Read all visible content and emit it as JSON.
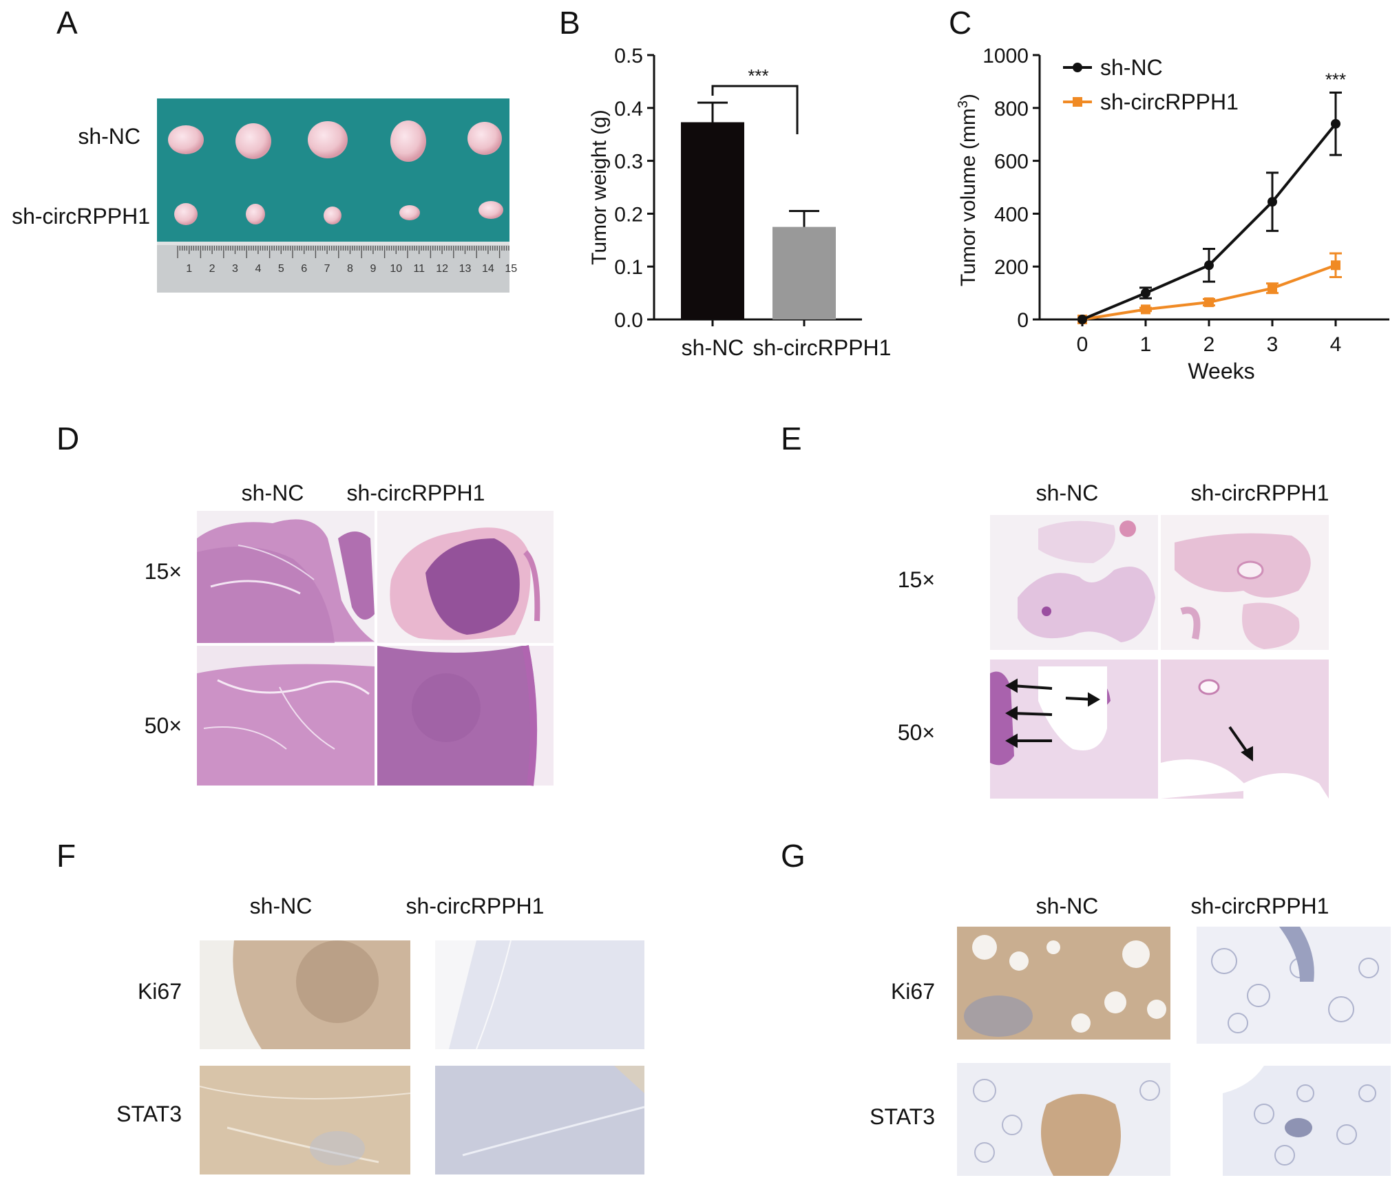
{
  "panels": {
    "A": {
      "letter": "A",
      "row_labels": [
        "sh-NC",
        "sh-circRPPH1"
      ],
      "ruler_numbers": [
        "1",
        "2",
        "3",
        "4",
        "5",
        "6",
        "7",
        "8",
        "9",
        "10",
        "11",
        "12",
        "13",
        "14",
        "15"
      ],
      "colors": {
        "background": "#1f8a8a",
        "tumor": "#eec3cc"
      }
    },
    "B": {
      "letter": "B"
    },
    "C": {
      "letter": "C"
    },
    "D": {
      "letter": "D",
      "col_labels": [
        "sh-NC",
        "sh-circRPPH1"
      ],
      "row_labels": [
        "15×",
        "50×"
      ]
    },
    "E": {
      "letter": "E",
      "col_labels": [
        "sh-NC",
        "sh-circRPPH1"
      ],
      "row_labels": [
        "15×",
        "50×"
      ]
    },
    "F": {
      "letter": "F",
      "col_labels": [
        "sh-NC",
        "sh-circRPPH1"
      ],
      "row_labels": [
        "Ki67",
        "STAT3"
      ]
    },
    "G": {
      "letter": "G",
      "col_labels": [
        "sh-NC",
        "sh-circRPPH1"
      ],
      "row_labels": [
        "Ki67",
        "STAT3"
      ]
    }
  },
  "chart_data": [
    {
      "panel": "B",
      "type": "bar",
      "categories": [
        "sh-NC",
        "sh-circRPPH1"
      ],
      "values": [
        0.373,
        0.175
      ],
      "errors": [
        0.037,
        0.03
      ],
      "colors": [
        "#0f0a0b",
        "#999999"
      ],
      "ylabel": "Tumor weight (g)",
      "ylim": [
        0,
        0.5
      ],
      "yticks": [
        "0.0",
        "0.1",
        "0.2",
        "0.3",
        "0.4",
        "0.5"
      ],
      "significance": "***"
    },
    {
      "panel": "C",
      "type": "line",
      "x": [
        0,
        1,
        2,
        3,
        4
      ],
      "xticks": [
        "0",
        "1",
        "2",
        "3",
        "4"
      ],
      "xlabel": "Weeks",
      "ylabel": "Tumor volume (mm",
      "ylabel_sup": "3",
      "ylabel_end": ")",
      "ylim": [
        0,
        1000
      ],
      "yticks": [
        "0",
        "200",
        "400",
        "600",
        "800",
        "1000"
      ],
      "legend": "top-left",
      "significance": "***",
      "series": [
        {
          "name": "sh-NC",
          "values": [
            0,
            100,
            205,
            445,
            740
          ],
          "errors": [
            0,
            20,
            62,
            110,
            118
          ],
          "color": "#111111",
          "marker": "circle"
        },
        {
          "name": "sh-circRPPH1",
          "values": [
            0,
            38,
            65,
            118,
            205
          ],
          "errors": [
            0,
            6,
            12,
            18,
            45
          ],
          "color": "#f08a24",
          "marker": "square"
        }
      ]
    }
  ]
}
